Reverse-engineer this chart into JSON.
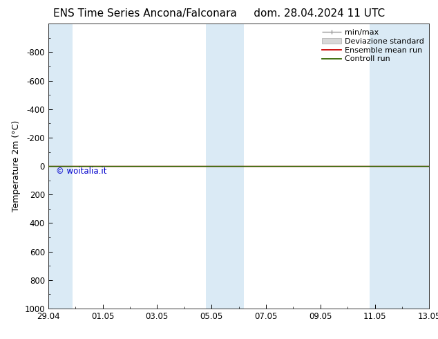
{
  "title_left": "ENS Time Series Ancona/Falconara",
  "title_right": "dom. 28.04.2024 11 UTC",
  "ylabel": "Temperature 2m (°C)",
  "ylim_bottom": 1000,
  "ylim_top": -1000,
  "yticks": [
    -800,
    -600,
    -400,
    -200,
    0,
    200,
    400,
    600,
    800,
    1000
  ],
  "xtick_labels": [
    "29.04",
    "01.05",
    "03.05",
    "05.05",
    "07.05",
    "09.05",
    "11.05",
    "13.05"
  ],
  "xtick_positions": [
    0,
    2,
    4,
    6,
    8,
    10,
    12,
    14
  ],
  "shaded_bands": [
    [
      0,
      0.9
    ],
    [
      5.8,
      7.2
    ],
    [
      11.8,
      12.8
    ],
    [
      12.8,
      14
    ]
  ],
  "shaded_color": "#daeaf5",
  "horizontal_line_color": "#336600",
  "red_line_color": "#cc0000",
  "background_color": "#ffffff",
  "watermark": "© woitalia.it",
  "watermark_color": "#0000cc",
  "legend_labels": [
    "min/max",
    "Deviazione standard",
    "Ensemble mean run",
    "Controll run"
  ],
  "legend_colors_line": [
    "#999999",
    "#cccccc",
    "#cc0000",
    "#336600"
  ],
  "title_fontsize": 11,
  "axis_label_fontsize": 9,
  "tick_fontsize": 8.5,
  "legend_fontsize": 8
}
